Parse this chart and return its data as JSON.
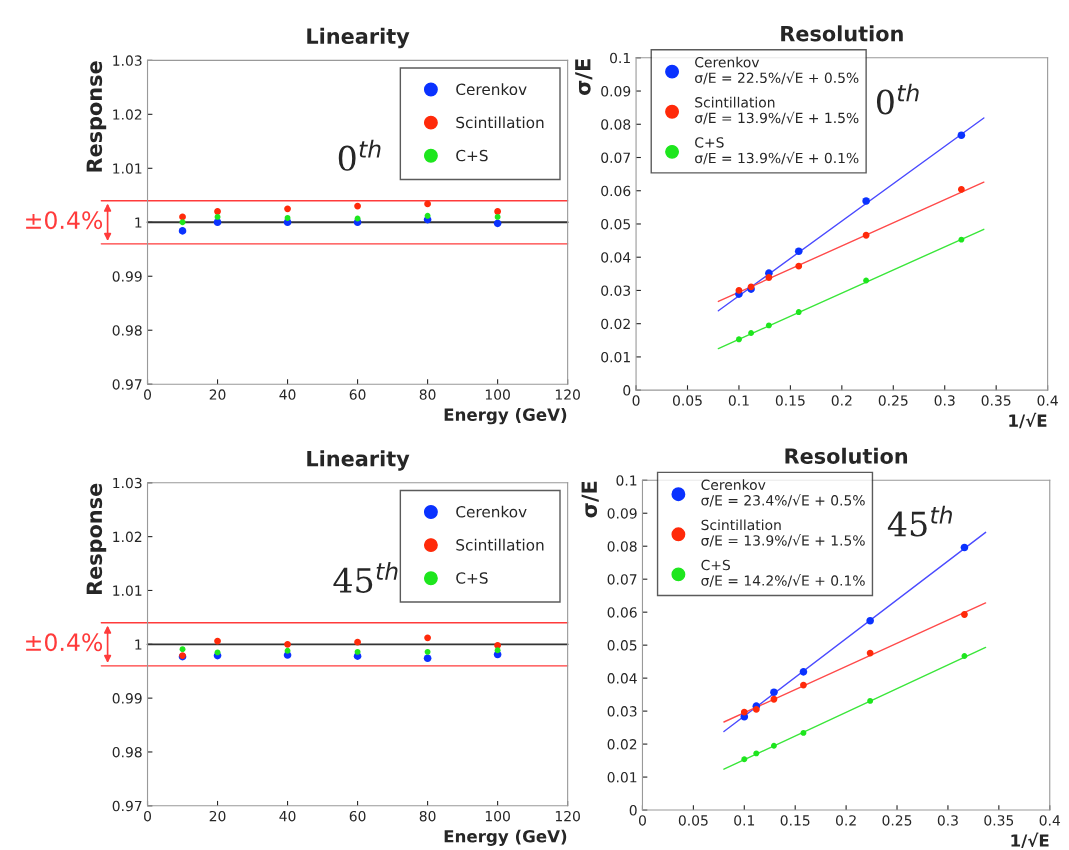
{
  "chart_data": [
    {
      "type": "scatter",
      "title": "Linearity",
      "xlabel": "Energy (GeV)",
      "ylabel": "Response",
      "x": [
        10,
        20,
        40,
        60,
        80,
        100
      ],
      "series": [
        {
          "name": "Cerenkov",
          "color": "#0a32ff",
          "values": [
            0.9984,
            1.0,
            1.0,
            1.0,
            1.0005,
            0.9998
          ]
        },
        {
          "name": "Scintillation",
          "color": "#ff2a0a",
          "values": [
            1.001,
            1.002,
            1.0025,
            1.003,
            1.0034,
            1.002
          ]
        },
        {
          "name": "C+S",
          "color": "#1ee61e",
          "values": [
            1.0,
            1.001,
            1.0008,
            1.0007,
            1.0012,
            1.001
          ]
        }
      ],
      "xlim": [
        0,
        120
      ],
      "xticks": [
        0,
        20,
        40,
        60,
        80,
        100,
        120
      ],
      "ylim": [
        0.97,
        1.03
      ],
      "yticks": [
        0.97,
        0.98,
        0.99,
        1,
        1.01,
        1.02,
        1.03
      ],
      "ref_lines": [
        {
          "axis": "y",
          "value": 1,
          "color": "#333333"
        },
        {
          "axis": "y",
          "value": 1.004,
          "color": "#ff3b3b"
        },
        {
          "axis": "y",
          "value": 0.996,
          "color": "#ff3b3b"
        }
      ],
      "annotations": [
        "0$^{th}$",
        "±0.4%"
      ],
      "legend": "top right",
      "marker": "circle",
      "grid": false
    },
    {
      "type": "scatter",
      "title": "Resolution",
      "xlabel": "1/√E",
      "ylabel": "σ/E",
      "x": [
        0.1,
        0.1118,
        0.1291,
        0.1581,
        0.2236,
        0.3162
      ],
      "series": [
        {
          "name": "Cerenkov\nσ/E = 22.5%/√E + 0.5%",
          "color": "#0a32ff",
          "values": [
            0.0289,
            0.0304,
            0.0352,
            0.0418,
            0.0569,
            0.0767
          ]
        },
        {
          "name": "Scintillation\nσ/E = 13.9%/√E + 1.5%",
          "color": "#ff2a0a",
          "values": [
            0.03,
            0.0311,
            0.0339,
            0.0373,
            0.0466,
            0.0604
          ]
        },
        {
          "name": "C+S\nσ/E = 13.9%/√E + 0.1%",
          "color": "#1ee61e",
          "values": [
            0.0153,
            0.0172,
            0.0195,
            0.0235,
            0.033,
            0.0453
          ]
        },
        {
          "type": "line",
          "marker": "none",
          "color": "#4a4aff",
          "x": [
            0.08,
            0.338
          ],
          "values": [
            0.0239,
            0.0819
          ]
        },
        {
          "type": "line",
          "marker": "none",
          "color": "#ff4a4a",
          "x": [
            0.08,
            0.338
          ],
          "values": [
            0.0267,
            0.0626
          ]
        },
        {
          "type": "line",
          "marker": "none",
          "color": "#3ae63a",
          "x": [
            0.08,
            0.338
          ],
          "values": [
            0.0125,
            0.0484
          ]
        }
      ],
      "xlim": [
        0,
        0.4
      ],
      "xticks": [
        0,
        0.05,
        0.1,
        0.15,
        0.2,
        0.25,
        0.3,
        0.35,
        0.4
      ],
      "ylim": [
        0,
        0.1
      ],
      "yticks": [
        0,
        0.01,
        0.02,
        0.03,
        0.04,
        0.05,
        0.06,
        0.07,
        0.08,
        0.09,
        0.1
      ],
      "annotations": [
        "0$^{th}$"
      ],
      "legend": "top left",
      "marker": "circle",
      "grid": false
    },
    {
      "type": "scatter",
      "title": "Linearity",
      "xlabel": "Energy (GeV)",
      "ylabel": "Response",
      "x": [
        10,
        20,
        40,
        60,
        80,
        100
      ],
      "series": [
        {
          "name": "Cerenkov",
          "color": "#0a32ff",
          "values": [
            0.9977,
            0.9979,
            0.998,
            0.9978,
            0.9974,
            0.9981
          ]
        },
        {
          "name": "Scintillation",
          "color": "#ff2a0a",
          "values": [
            0.9979,
            1.0006,
            1.0,
            1.0004,
            1.0012,
            0.9998
          ]
        },
        {
          "name": "C+S",
          "color": "#1ee61e",
          "values": [
            0.9991,
            0.9985,
            0.9988,
            0.9986,
            0.9986,
            0.9989
          ]
        }
      ],
      "xlim": [
        0,
        120
      ],
      "xticks": [
        0,
        20,
        40,
        60,
        80,
        100,
        120
      ],
      "ylim": [
        0.97,
        1.03
      ],
      "yticks": [
        0.97,
        0.98,
        0.99,
        1,
        1.01,
        1.02,
        1.03
      ],
      "ref_lines": [
        {
          "axis": "y",
          "value": 1,
          "color": "#333333"
        },
        {
          "axis": "y",
          "value": 1.004,
          "color": "#ff3b3b"
        },
        {
          "axis": "y",
          "value": 0.996,
          "color": "#ff3b3b"
        }
      ],
      "annotations": [
        "45$^{th}$",
        "±0.4%"
      ],
      "legend": "top right",
      "marker": "circle",
      "grid": false
    },
    {
      "type": "scatter",
      "title": "Resolution",
      "xlabel": "1/√E",
      "ylabel": "σ/E",
      "x": [
        0.1,
        0.1118,
        0.1291,
        0.1581,
        0.2236,
        0.3162
      ],
      "series": [
        {
          "name": "Cerenkov\nσ/E = 23.4%/√E + 0.5%",
          "color": "#0a32ff",
          "values": [
            0.0283,
            0.0315,
            0.0357,
            0.0419,
            0.0574,
            0.0796
          ]
        },
        {
          "name": "Scintillation\nσ/E = 13.9%/√E + 1.5%",
          "color": "#ff2a0a",
          "values": [
            0.0297,
            0.0305,
            0.0336,
            0.0379,
            0.0476,
            0.0593
          ]
        },
        {
          "name": "C+S\nσ/E = 14.2%/√E + 0.1%",
          "color": "#1ee61e",
          "values": [
            0.0154,
            0.0172,
            0.0195,
            0.0234,
            0.0331,
            0.0467
          ]
        },
        {
          "type": "line",
          "marker": "none",
          "color": "#4a4aff",
          "x": [
            0.08,
            0.337
          ],
          "values": [
            0.0238,
            0.0842
          ]
        },
        {
          "type": "line",
          "marker": "none",
          "color": "#ff4a4a",
          "x": [
            0.08,
            0.337
          ],
          "values": [
            0.0267,
            0.0628
          ]
        },
        {
          "type": "line",
          "marker": "none",
          "color": "#3ae63a",
          "x": [
            0.08,
            0.337
          ],
          "values": [
            0.0124,
            0.0493
          ]
        }
      ],
      "xlim": [
        0,
        0.4
      ],
      "xticks": [
        0,
        0.05,
        0.1,
        0.15,
        0.2,
        0.25,
        0.3,
        0.35,
        0.4
      ],
      "ylim": [
        0,
        0.1
      ],
      "yticks": [
        0,
        0.01,
        0.02,
        0.03,
        0.04,
        0.05,
        0.06,
        0.07,
        0.08,
        0.09,
        0.1
      ],
      "annotations": [
        "45$^{th}$"
      ],
      "legend": "top left",
      "marker": "circle",
      "grid": false
    }
  ]
}
